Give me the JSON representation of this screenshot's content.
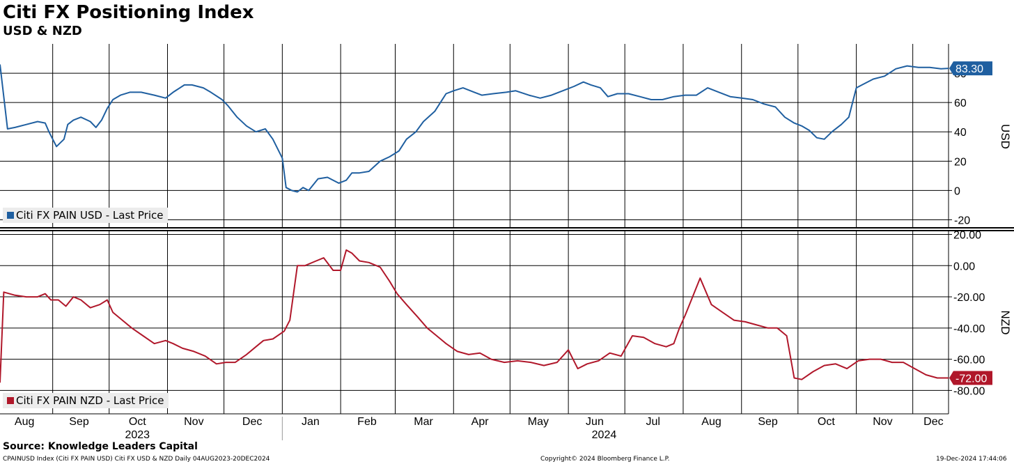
{
  "header": {
    "title": "Citi FX Positioning Index",
    "subtitle": "USD & NZD"
  },
  "footer": {
    "source": "Source: Knowledge Leaders Capital",
    "left": "CPAINUSD Index (Citi FX PAIN USD) Citi FX USD & NZD  Daily 04AUG2023-20DEC2024",
    "center": "Copyright© 2024 Bloomberg Finance L.P.",
    "right": "19-Dec-2024 17:44:06"
  },
  "colors": {
    "usd": "#1f5fa0",
    "nzd": "#b0172a",
    "grid": "#000000"
  },
  "chart_data": [
    {
      "type": "line",
      "panel": "top",
      "ylabel": "USD",
      "ylim": [
        -25,
        100
      ],
      "yticks": [
        -20,
        0,
        20,
        40,
        60,
        80
      ],
      "ytick_labels": [
        "-20",
        "0",
        "20",
        "40",
        "60",
        "80"
      ],
      "last_value_label": "83.30",
      "legend": "Citi FX PAIN USD - Last Price",
      "legend_placement": "bottom-left",
      "grid": true,
      "series": [
        {
          "name": "Citi FX PAIN USD - Last Price",
          "color": "#1f5fa0",
          "x": [
            "2023-08-04",
            "2023-08-08",
            "2023-08-12",
            "2023-08-18",
            "2023-08-24",
            "2023-08-28",
            "2023-08-30",
            "2023-09-03",
            "2023-09-07",
            "2023-09-09",
            "2023-09-12",
            "2023-09-16",
            "2023-09-21",
            "2023-09-24",
            "2023-09-27",
            "2023-09-30",
            "2023-10-03",
            "2023-10-07",
            "2023-10-12",
            "2023-10-18",
            "2023-10-25",
            "2023-10-31",
            "2023-11-04",
            "2023-11-10",
            "2023-11-14",
            "2023-11-20",
            "2023-11-24",
            "2023-11-30",
            "2023-12-03",
            "2023-12-08",
            "2023-12-13",
            "2023-12-18",
            "2023-12-23",
            "2023-12-27",
            "2024-01-01",
            "2024-01-03",
            "2024-01-06",
            "2024-01-09",
            "2024-01-12",
            "2024-01-15",
            "2024-01-20",
            "2024-01-25",
            "2024-01-31",
            "2024-02-04",
            "2024-02-07",
            "2024-02-11",
            "2024-02-16",
            "2024-02-22",
            "2024-02-27",
            "2024-03-03",
            "2024-03-07",
            "2024-03-12",
            "2024-03-16",
            "2024-03-22",
            "2024-03-28",
            "2024-04-01",
            "2024-04-06",
            "2024-04-12",
            "2024-04-16",
            "2024-04-22",
            "2024-04-29",
            "2024-05-04",
            "2024-05-11",
            "2024-05-17",
            "2024-05-23",
            "2024-05-29",
            "2024-06-04",
            "2024-06-09",
            "2024-06-13",
            "2024-06-18",
            "2024-06-22",
            "2024-06-27",
            "2024-07-03",
            "2024-07-09",
            "2024-07-15",
            "2024-07-21",
            "2024-07-27",
            "2024-08-02",
            "2024-08-08",
            "2024-08-14",
            "2024-08-20",
            "2024-08-26",
            "2024-09-01",
            "2024-09-07",
            "2024-09-13",
            "2024-09-19",
            "2024-09-24",
            "2024-09-29",
            "2024-10-03",
            "2024-10-07",
            "2024-10-11",
            "2024-10-15",
            "2024-10-19",
            "2024-10-24",
            "2024-10-28",
            "2024-11-01",
            "2024-11-04",
            "2024-11-10",
            "2024-11-16",
            "2024-11-22",
            "2024-11-28",
            "2024-12-04",
            "2024-12-10",
            "2024-12-16",
            "2024-12-20"
          ],
          "y": [
            86,
            42,
            43,
            45,
            47,
            46,
            40,
            30,
            35,
            45,
            48,
            50,
            47,
            43,
            48,
            56,
            62,
            65,
            67,
            67,
            65,
            63,
            67,
            72,
            72,
            70,
            67,
            62,
            58,
            50,
            44,
            40,
            42,
            35,
            22,
            2,
            0,
            -1,
            2,
            0,
            8,
            9,
            5,
            7,
            12,
            12,
            13,
            20,
            23,
            27,
            35,
            40,
            47,
            54,
            66,
            68,
            70,
            67,
            65,
            66,
            67,
            68,
            65,
            63,
            65,
            68,
            71,
            74,
            72,
            70,
            64,
            66,
            66,
            64,
            62,
            62,
            64,
            65,
            65,
            70,
            67,
            64,
            63,
            62,
            59,
            57,
            50,
            46,
            44,
            41,
            36,
            35,
            40,
            45,
            50,
            70,
            72,
            76,
            78,
            83,
            85,
            84,
            84,
            83,
            83.3
          ]
        }
      ]
    },
    {
      "type": "line",
      "panel": "bottom",
      "ylabel": "NZD",
      "ylim": [
        -95,
        22
      ],
      "yticks": [
        -80,
        -60,
        -40,
        -20,
        0,
        20
      ],
      "ytick_labels": [
        "-80.00",
        "-60.00",
        "-40.00",
        "-20.00",
        "0.00",
        "20.00"
      ],
      "last_value_label": "-72.00",
      "legend": "Citi FX PAIN NZD - Last Price",
      "legend_placement": "bottom-left",
      "grid": true,
      "series": [
        {
          "name": "Citi FX PAIN NZD - Last Price",
          "color": "#b0172a",
          "x": [
            "2023-08-04",
            "2023-08-06",
            "2023-08-12",
            "2023-08-18",
            "2023-08-24",
            "2023-08-28",
            "2023-08-31",
            "2023-09-04",
            "2023-09-08",
            "2023-09-12",
            "2023-09-16",
            "2023-09-21",
            "2023-09-26",
            "2023-09-30",
            "2023-10-03",
            "2023-10-08",
            "2023-10-13",
            "2023-10-19",
            "2023-10-25",
            "2023-10-31",
            "2023-11-04",
            "2023-11-09",
            "2023-11-15",
            "2023-11-21",
            "2023-11-27",
            "2023-12-02",
            "2023-12-07",
            "2023-12-13",
            "2023-12-18",
            "2023-12-22",
            "2023-12-27",
            "2024-01-02",
            "2024-01-05",
            "2024-01-09",
            "2024-01-13",
            "2024-01-19",
            "2024-01-23",
            "2024-01-28",
            "2024-02-01",
            "2024-02-04",
            "2024-02-07",
            "2024-02-11",
            "2024-02-16",
            "2024-02-22",
            "2024-02-27",
            "2024-03-02",
            "2024-03-07",
            "2024-03-13",
            "2024-03-18",
            "2024-03-23",
            "2024-03-28",
            "2024-04-03",
            "2024-04-09",
            "2024-04-15",
            "2024-04-21",
            "2024-04-28",
            "2024-05-05",
            "2024-05-12",
            "2024-05-19",
            "2024-05-26",
            "2024-06-01",
            "2024-06-06",
            "2024-06-11",
            "2024-06-17",
            "2024-06-23",
            "2024-06-29",
            "2024-07-05",
            "2024-07-11",
            "2024-07-17",
            "2024-07-23",
            "2024-07-27",
            "2024-07-30",
            "2024-08-02",
            "2024-08-06",
            "2024-08-10",
            "2024-08-16",
            "2024-08-22",
            "2024-08-28",
            "2024-09-03",
            "2024-09-09",
            "2024-09-15",
            "2024-09-20",
            "2024-09-25",
            "2024-09-29",
            "2024-10-03",
            "2024-10-09",
            "2024-10-15",
            "2024-10-21",
            "2024-10-27",
            "2024-11-02",
            "2024-11-08",
            "2024-11-14",
            "2024-11-20",
            "2024-11-26",
            "2024-12-02",
            "2024-12-08",
            "2024-12-14",
            "2024-12-20"
          ],
          "y": [
            -75,
            -17,
            -19,
            -20,
            -20,
            -18,
            -22,
            -22,
            -26,
            -20,
            -22,
            -27,
            -25,
            -22,
            -30,
            -35,
            -40,
            -45,
            -50,
            -48,
            -50,
            -53,
            -55,
            -58,
            -63,
            -62,
            -62,
            -57,
            -52,
            -48,
            -47,
            -42,
            -35,
            0,
            0,
            3,
            5,
            -3,
            -3,
            10,
            8,
            3,
            2,
            -1,
            -10,
            -18,
            -25,
            -33,
            -40,
            -45,
            -50,
            -55,
            -57,
            -56,
            -60,
            -62,
            -61,
            -62,
            -64,
            -62,
            -54,
            -66,
            -63,
            -61,
            -56,
            -58,
            -45,
            -46,
            -50,
            -52,
            -50,
            -40,
            -32,
            -20,
            -8,
            -25,
            -30,
            -35,
            -36,
            -38,
            -40,
            -40,
            -45,
            -72,
            -73,
            -68,
            -64,
            -63,
            -66,
            -61,
            -60,
            -60,
            -62,
            -62,
            -66,
            -70,
            -72,
            -72
          ]
        }
      ]
    }
  ],
  "x_axis": {
    "month_labels": [
      "Aug",
      "Sep",
      "Oct",
      "Nov",
      "Dec",
      "Jan",
      "Feb",
      "Mar",
      "Apr",
      "May",
      "Jun",
      "Jul",
      "Aug",
      "Sep",
      "Oct",
      "Nov",
      "Dec"
    ],
    "year_labels": [
      "2023",
      "2024"
    ]
  }
}
